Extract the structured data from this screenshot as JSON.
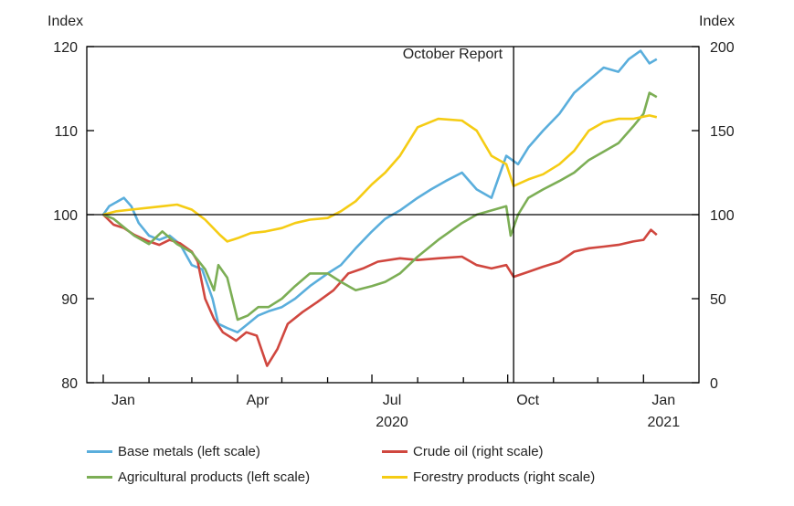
{
  "chart_data": {
    "type": "line",
    "y_left_label": "Index",
    "y_right_label": "Index",
    "y_left_range": [
      80,
      120
    ],
    "y_right_range": [
      0,
      200
    ],
    "y_left_ticks": [
      "120",
      "110",
      "100",
      "90",
      "80"
    ],
    "y_right_ticks": [
      "200",
      "150",
      "100",
      "50",
      "0"
    ],
    "x_range": [
      "2020-01-01",
      "2021-01-20"
    ],
    "x_ticks": [
      {
        "label": "Jan",
        "date": "2020-01-01"
      },
      {
        "label": "Apr",
        "date": "2020-04-01"
      },
      {
        "label": "Jul",
        "date": "2020-07-01"
      },
      {
        "label": "Oct",
        "date": "2020-10-01"
      },
      {
        "label": "Jan",
        "date": "2021-01-01"
      }
    ],
    "x_year_labels": [
      {
        "label": "2020",
        "date": "2020-07-01"
      },
      {
        "label": "2021",
        "date": "2021-01-01"
      }
    ],
    "annotation": {
      "label": "October Report",
      "date": "2020-10-05"
    },
    "reference_line_left": 100,
    "series": [
      {
        "name": "Base metals (left scale)",
        "axis": "left",
        "color": "#5aaedc",
        "points": [
          [
            "2020-01-01",
            100.0
          ],
          [
            "2020-01-05",
            101.0
          ],
          [
            "2020-01-10",
            101.5
          ],
          [
            "2020-01-15",
            102.0
          ],
          [
            "2020-01-20",
            101.0
          ],
          [
            "2020-01-25",
            99.0
          ],
          [
            "2020-02-01",
            97.5
          ],
          [
            "2020-02-08",
            97.0
          ],
          [
            "2020-02-15",
            97.5
          ],
          [
            "2020-02-22",
            96.5
          ],
          [
            "2020-03-01",
            94.0
          ],
          [
            "2020-03-08",
            93.5
          ],
          [
            "2020-03-15",
            90.0
          ],
          [
            "2020-03-19",
            87.0
          ],
          [
            "2020-03-25",
            86.5
          ],
          [
            "2020-04-01",
            86.0
          ],
          [
            "2020-04-08",
            87.0
          ],
          [
            "2020-04-15",
            88.0
          ],
          [
            "2020-04-22",
            88.5
          ],
          [
            "2020-05-01",
            89.0
          ],
          [
            "2020-05-10",
            90.0
          ],
          [
            "2020-05-20",
            91.5
          ],
          [
            "2020-06-01",
            93.0
          ],
          [
            "2020-06-10",
            94.0
          ],
          [
            "2020-06-20",
            96.0
          ],
          [
            "2020-07-01",
            98.0
          ],
          [
            "2020-07-10",
            99.5
          ],
          [
            "2020-07-20",
            100.5
          ],
          [
            "2020-08-01",
            102.0
          ],
          [
            "2020-08-10",
            103.0
          ],
          [
            "2020-08-20",
            104.0
          ],
          [
            "2020-08-31",
            105.0
          ],
          [
            "2020-09-10",
            103.0
          ],
          [
            "2020-09-20",
            102.0
          ],
          [
            "2020-09-30",
            107.0
          ],
          [
            "2020-10-08",
            106.0
          ],
          [
            "2020-10-15",
            108.0
          ],
          [
            "2020-10-25",
            110.0
          ],
          [
            "2020-11-05",
            112.0
          ],
          [
            "2020-11-15",
            114.5
          ],
          [
            "2020-11-25",
            116.0
          ],
          [
            "2020-12-05",
            117.5
          ],
          [
            "2020-12-15",
            117.0
          ],
          [
            "2020-12-22",
            118.5
          ],
          [
            "2020-12-30",
            119.5
          ],
          [
            "2021-01-05",
            118.0
          ],
          [
            "2021-01-10",
            118.5
          ]
        ]
      },
      {
        "name": "Crude oil (right scale)",
        "axis": "right",
        "color": "#d0473f",
        "points": [
          [
            "2020-01-01",
            100
          ],
          [
            "2020-01-08",
            94
          ],
          [
            "2020-01-15",
            92
          ],
          [
            "2020-01-22",
            88
          ],
          [
            "2020-02-01",
            84
          ],
          [
            "2020-02-08",
            82
          ],
          [
            "2020-02-15",
            85
          ],
          [
            "2020-02-22",
            83
          ],
          [
            "2020-03-01",
            78
          ],
          [
            "2020-03-05",
            72
          ],
          [
            "2020-03-10",
            50
          ],
          [
            "2020-03-16",
            38
          ],
          [
            "2020-03-22",
            30
          ],
          [
            "2020-03-31",
            25
          ],
          [
            "2020-04-07",
            30
          ],
          [
            "2020-04-14",
            28
          ],
          [
            "2020-04-21",
            10
          ],
          [
            "2020-04-28",
            20
          ],
          [
            "2020-05-05",
            35
          ],
          [
            "2020-05-15",
            42
          ],
          [
            "2020-05-25",
            48
          ],
          [
            "2020-06-05",
            55
          ],
          [
            "2020-06-15",
            65
          ],
          [
            "2020-06-25",
            68
          ],
          [
            "2020-07-05",
            72
          ],
          [
            "2020-07-20",
            74
          ],
          [
            "2020-08-01",
            73
          ],
          [
            "2020-08-15",
            74
          ],
          [
            "2020-08-31",
            75
          ],
          [
            "2020-09-10",
            70
          ],
          [
            "2020-09-20",
            68
          ],
          [
            "2020-09-30",
            70
          ],
          [
            "2020-10-05",
            63
          ],
          [
            "2020-10-15",
            66
          ],
          [
            "2020-10-25",
            69
          ],
          [
            "2020-11-05",
            72
          ],
          [
            "2020-11-15",
            78
          ],
          [
            "2020-11-25",
            80
          ],
          [
            "2020-12-05",
            81
          ],
          [
            "2020-12-15",
            82
          ],
          [
            "2020-12-25",
            84
          ],
          [
            "2021-01-01",
            85
          ],
          [
            "2021-01-06",
            91
          ],
          [
            "2021-01-10",
            88
          ]
        ]
      },
      {
        "name": "Agricultural products (left scale)",
        "axis": "left",
        "color": "#7cae55",
        "points": [
          [
            "2020-01-01",
            100.0
          ],
          [
            "2020-01-08",
            99.5
          ],
          [
            "2020-01-15",
            98.5
          ],
          [
            "2020-01-22",
            97.5
          ],
          [
            "2020-02-01",
            96.5
          ],
          [
            "2020-02-10",
            98.0
          ],
          [
            "2020-02-20",
            96.5
          ],
          [
            "2020-03-01",
            95.5
          ],
          [
            "2020-03-10",
            93.5
          ],
          [
            "2020-03-16",
            91.0
          ],
          [
            "2020-03-19",
            94.0
          ],
          [
            "2020-03-25",
            92.5
          ],
          [
            "2020-04-01",
            87.5
          ],
          [
            "2020-04-08",
            88.0
          ],
          [
            "2020-04-15",
            89.0
          ],
          [
            "2020-04-22",
            89.0
          ],
          [
            "2020-05-01",
            90.0
          ],
          [
            "2020-05-10",
            91.5
          ],
          [
            "2020-05-20",
            93.0
          ],
          [
            "2020-06-01",
            93.0
          ],
          [
            "2020-06-10",
            92.0
          ],
          [
            "2020-06-20",
            91.0
          ],
          [
            "2020-07-01",
            91.5
          ],
          [
            "2020-07-10",
            92.0
          ],
          [
            "2020-07-20",
            93.0
          ],
          [
            "2020-08-01",
            95.0
          ],
          [
            "2020-08-15",
            97.0
          ],
          [
            "2020-08-31",
            99.0
          ],
          [
            "2020-09-10",
            100.0
          ],
          [
            "2020-09-20",
            100.5
          ],
          [
            "2020-09-30",
            101.0
          ],
          [
            "2020-10-03",
            97.5
          ],
          [
            "2020-10-08",
            100.0
          ],
          [
            "2020-10-15",
            102.0
          ],
          [
            "2020-10-25",
            103.0
          ],
          [
            "2020-11-05",
            104.0
          ],
          [
            "2020-11-15",
            105.0
          ],
          [
            "2020-11-25",
            106.5
          ],
          [
            "2020-12-05",
            107.5
          ],
          [
            "2020-12-15",
            108.5
          ],
          [
            "2020-12-25",
            110.5
          ],
          [
            "2021-01-01",
            112.0
          ],
          [
            "2021-01-05",
            114.5
          ],
          [
            "2021-01-10",
            114.0
          ]
        ]
      },
      {
        "name": "Forestry products (right scale)",
        "axis": "right",
        "color": "#f5cc14",
        "points": [
          [
            "2020-01-01",
            100
          ],
          [
            "2020-01-10",
            102
          ],
          [
            "2020-01-20",
            103
          ],
          [
            "2020-01-31",
            104
          ],
          [
            "2020-02-10",
            105
          ],
          [
            "2020-02-20",
            106
          ],
          [
            "2020-03-01",
            103
          ],
          [
            "2020-03-10",
            97
          ],
          [
            "2020-03-20",
            88
          ],
          [
            "2020-03-25",
            84
          ],
          [
            "2020-04-01",
            86
          ],
          [
            "2020-04-10",
            89
          ],
          [
            "2020-04-20",
            90
          ],
          [
            "2020-05-01",
            92
          ],
          [
            "2020-05-10",
            95
          ],
          [
            "2020-05-20",
            97
          ],
          [
            "2020-06-01",
            98
          ],
          [
            "2020-06-10",
            102
          ],
          [
            "2020-06-20",
            108
          ],
          [
            "2020-07-01",
            118
          ],
          [
            "2020-07-10",
            125
          ],
          [
            "2020-07-20",
            135
          ],
          [
            "2020-08-01",
            152
          ],
          [
            "2020-08-15",
            157
          ],
          [
            "2020-08-31",
            156
          ],
          [
            "2020-09-10",
            150
          ],
          [
            "2020-09-20",
            135
          ],
          [
            "2020-09-30",
            130
          ],
          [
            "2020-10-05",
            117
          ],
          [
            "2020-10-15",
            121
          ],
          [
            "2020-10-25",
            124
          ],
          [
            "2020-11-05",
            130
          ],
          [
            "2020-11-15",
            138
          ],
          [
            "2020-11-25",
            150
          ],
          [
            "2020-12-05",
            155
          ],
          [
            "2020-12-15",
            157
          ],
          [
            "2020-12-25",
            157
          ],
          [
            "2021-01-05",
            159
          ],
          [
            "2021-01-10",
            158
          ]
        ]
      }
    ],
    "legend": [
      {
        "label": "Base metals (left scale)",
        "color": "#5aaedc"
      },
      {
        "label": "Crude oil (right scale)",
        "color": "#d0473f"
      },
      {
        "label": "Agricultural products (left scale)",
        "color": "#7cae55"
      },
      {
        "label": "Forestry products (right scale)",
        "color": "#f5cc14"
      }
    ]
  }
}
